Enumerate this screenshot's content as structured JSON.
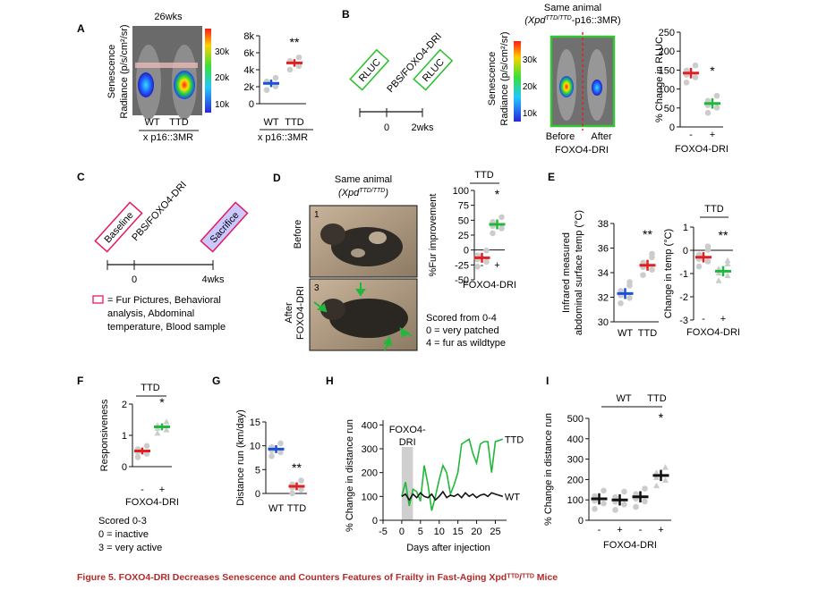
{
  "panels": {
    "A": {
      "letter": "A",
      "image_title": "26wks",
      "ylabel_l1": "Senescence",
      "ylabel_l2": "Radiance (p/s/cm²/sr)",
      "colorbar_ticks": [
        "30k",
        "20k",
        "10k"
      ],
      "img_labels": [
        "WT",
        "TTD"
      ],
      "img_footer": "x p16::3MR",
      "chart_data": {
        "type": "scatter",
        "categories": [
          "WT",
          "TTD"
        ],
        "yticks": [
          "8k",
          "6k",
          "4k",
          "2k",
          "0"
        ],
        "ylim": [
          0,
          8000
        ],
        "means": [
          2400,
          4800
        ],
        "colors": [
          "#1a4fd6",
          "#e02020"
        ],
        "significance": "**",
        "footer": "x p16::3MR"
      }
    },
    "B": {
      "letter": "B",
      "timeline_boxes": [
        "RLUC",
        "PBS/FOXO4-DRI",
        "RLUC"
      ],
      "timeline_ticks": [
        "0",
        "2wks"
      ],
      "image_title_l1": "Same animal",
      "ylabel_l1": "Senescence",
      "ylabel_l2": "Radiance (p/s/cm²/sr)",
      "colorbar_ticks": [
        "30k",
        "20k",
        "10k"
      ],
      "before": "Before",
      "after": "After",
      "img_footer": "FOXO4-DRI",
      "chart_data": {
        "type": "scatter",
        "categories": [
          "-",
          "+"
        ],
        "yticks": [
          "250",
          "200",
          "150",
          "100",
          "50",
          "0"
        ],
        "ylim": [
          0,
          250
        ],
        "means": [
          142,
          62
        ],
        "colors": [
          "#e02020",
          "#1fb83a"
        ],
        "significance": "*",
        "ylabel": "% Change in RLUC",
        "xlabel": "FOXO4-DRI"
      }
    },
    "C": {
      "letter": "C",
      "timeline_boxes": [
        "Baseline",
        "PBS/FOXO4-DRI",
        "Sacrifice"
      ],
      "timeline_ticks": [
        "0",
        "4wks"
      ],
      "legend_l1": "= Fur Pictures, Behavioral",
      "legend_l2": "analysis, Abdominal",
      "legend_l3": "temperature, Blood sample"
    },
    "D": {
      "letter": "D",
      "image_title_l1": "Same animal",
      "before_label": "Before",
      "after_label_l1": "After",
      "after_label_l2": "FOXO4-DRI",
      "photo_nums": [
        "1",
        "3"
      ],
      "group": "TTD",
      "notes": [
        "Scored from 0-4",
        "0 = very patched",
        "4 = fur as wildtype"
      ],
      "chart_data": {
        "type": "scatter",
        "categories": [
          "-",
          "+"
        ],
        "yticks": [
          "100",
          "75",
          "50",
          "25",
          "0",
          "-25",
          "-50"
        ],
        "ylim": [
          -50,
          100
        ],
        "means": [
          -13,
          43
        ],
        "colors": [
          "#e02020",
          "#1fb83a"
        ],
        "significance": "*",
        "ylabel": "%Fur improvement",
        "xlabel": "FOXO4-DRI"
      }
    },
    "E": {
      "letter": "E",
      "left_chart": {
        "type": "scatter",
        "categories": [
          "WT",
          "TTD"
        ],
        "yticks": [
          "38",
          "36",
          "34",
          "32",
          "30"
        ],
        "ylim": [
          30,
          38
        ],
        "means": [
          32.3,
          34.6
        ],
        "colors": [
          "#1a4fd6",
          "#e02020"
        ],
        "significance": "**",
        "ylabel_l1": "Infrared measured",
        "ylabel_l2": "abdominal surface temp (°C)"
      },
      "right_chart": {
        "type": "scatter",
        "group": "TTD",
        "categories": [
          "-",
          "+"
        ],
        "yticks": [
          "1",
          "0",
          "-1",
          "-2",
          "-3"
        ],
        "ylim": [
          -3,
          1
        ],
        "means": [
          -0.3,
          -0.9
        ],
        "colors": [
          "#e02020",
          "#1fb83a"
        ],
        "significance": "**",
        "ylabel": "Change in temp (°C)",
        "xlabel": "FOXO4-DRI"
      }
    },
    "F": {
      "letter": "F",
      "group": "TTD",
      "notes": [
        "Scored 0-3",
        "0 = inactive",
        "3 = very active"
      ],
      "chart_data": {
        "type": "scatter",
        "categories": [
          "-",
          "+"
        ],
        "yticks": [
          "2",
          "1",
          "0"
        ],
        "ylim": [
          0,
          2.2
        ],
        "means": [
          0.55,
          1.4
        ],
        "colors": [
          "#e02020",
          "#1fb83a"
        ],
        "significance": "*",
        "ylabel": "Responsiveness",
        "xlabel": "FOXO4-DRI"
      }
    },
    "G": {
      "letter": "G",
      "chart_data": {
        "type": "scatter",
        "categories": [
          "WT",
          "TTD"
        ],
        "yticks": [
          "15",
          "10",
          "5",
          "0"
        ],
        "ylim": [
          0,
          15
        ],
        "means": [
          9.3,
          1.5
        ],
        "colors": [
          "#1a4fd6",
          "#e02020"
        ],
        "significance": "**",
        "ylabel": "Distance run (km/day)"
      }
    },
    "H": {
      "letter": "H",
      "shade_label_l1": "FOXO4-",
      "shade_label_l2": "DRI",
      "chart_data": {
        "type": "line",
        "ylabel": "% Change in distance run",
        "xlabel": "Days after injection",
        "xticks": [
          "-5",
          "0",
          "5",
          "10",
          "15",
          "20",
          "25"
        ],
        "yticks": [
          "400",
          "300",
          "200",
          "100",
          "0"
        ],
        "xlim": [
          -5,
          28
        ],
        "ylim": [
          0,
          420
        ],
        "shade": [
          0,
          3
        ],
        "series": [
          {
            "name": "TTD",
            "color": "#1fb83a",
            "x": [
              0,
              1,
              2,
              3,
              4,
              5,
              6,
              7,
              8,
              9,
              10,
              11,
              12,
              13,
              14,
              15,
              16,
              17,
              18,
              19,
              20,
              21,
              22,
              23,
              24,
              25,
              26,
              27
            ],
            "y": [
              100,
              160,
              60,
              130,
              120,
              80,
              230,
              150,
              40,
              100,
              170,
              230,
              200,
              110,
              150,
              200,
              320,
              330,
              340,
              280,
              240,
              320,
              330,
              330,
              200,
              330,
              335,
              340
            ]
          },
          {
            "name": "WT",
            "color": "#111111",
            "x": [
              0,
              1,
              2,
              3,
              4,
              5,
              6,
              7,
              8,
              9,
              10,
              11,
              12,
              13,
              14,
              15,
              16,
              17,
              18,
              19,
              20,
              21,
              22,
              23,
              24,
              25,
              26,
              27
            ],
            "y": [
              100,
              110,
              85,
              110,
              95,
              115,
              100,
              95,
              110,
              85,
              100,
              120,
              95,
              105,
              100,
              110,
              95,
              115,
              100,
              110,
              95,
              105,
              110,
              100,
              115,
              110,
              105,
              100
            ]
          }
        ]
      }
    },
    "I": {
      "letter": "I",
      "groups": [
        "WT",
        "TTD"
      ],
      "chart_data": {
        "type": "scatter",
        "categories": [
          "-",
          "+",
          "-",
          "+"
        ],
        "yticks": [
          "500",
          "400",
          "300",
          "200",
          "100",
          "0"
        ],
        "ylim": [
          0,
          500
        ],
        "means": [
          105,
          100,
          115,
          220
        ],
        "colors": [
          "#111111",
          "#111111",
          "#111111",
          "#111111"
        ],
        "significance": "*",
        "ylabel": "% Change in distance run",
        "xlabel": "FOXO4-DRI"
      }
    }
  },
  "caption": "Figure 5.  FOXO4-DRI Decreases Senescence and Counters Features of Frailty in Fast-Aging Xpdᵀᵀᴰ/ᵀᵀᴰ Mice"
}
